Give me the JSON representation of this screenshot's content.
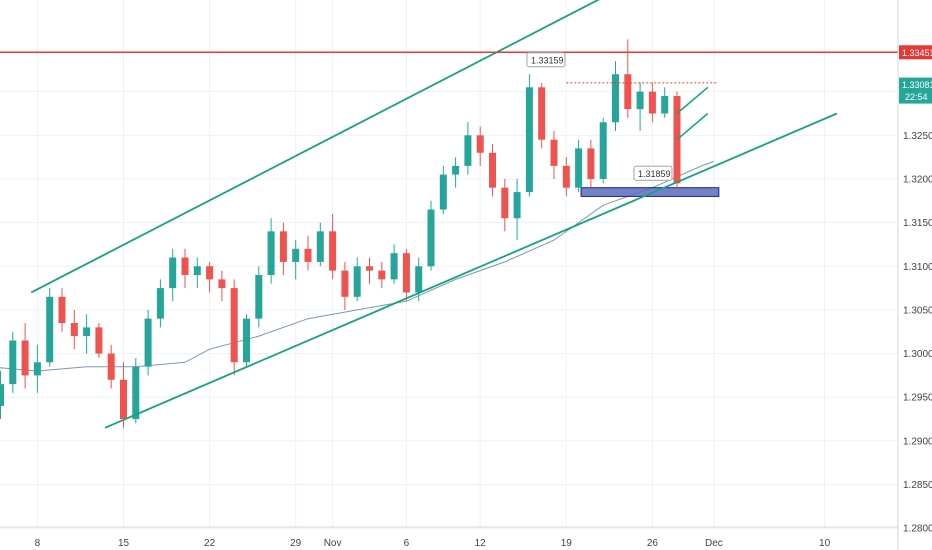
{
  "chart_data": {
    "type": "candlestick",
    "ylim": [
      1.2775,
      1.3405
    ],
    "x_ticks": [
      {
        "label": "8",
        "x": 8
      },
      {
        "label": "15",
        "x": 15
      },
      {
        "label": "22",
        "x": 22
      },
      {
        "label": "29",
        "x": 29
      },
      {
        "label": "Nov",
        "x": 32
      },
      {
        "label": "6",
        "x": 38
      },
      {
        "label": "12",
        "x": 44
      },
      {
        "label": "19",
        "x": 51
      },
      {
        "label": "26",
        "x": 58
      },
      {
        "label": "Dec",
        "x": 63
      },
      {
        "label": "10",
        "x": 72
      }
    ],
    "y_ticks": [
      "1.28000",
      "1.28500",
      "1.29000",
      "1.29500",
      "1.30000",
      "1.30500",
      "1.31000",
      "1.31500",
      "1.32000",
      "1.32500",
      "1.33000"
    ],
    "y_tick_values": [
      1.28,
      1.285,
      1.29,
      1.295,
      1.3,
      1.305,
      1.31,
      1.315,
      1.32,
      1.325,
      1.33
    ],
    "colors": {
      "up": "#26a69a",
      "down": "#ef5350",
      "ma": "#7b97b8",
      "channel": "#14a37f",
      "resistance": "#e53935",
      "zone": "#3f51b5",
      "grid": "#eef1f4"
    },
    "resistance_level": {
      "value": 1.33451,
      "label": "1.33451"
    },
    "price_tag": {
      "value": 1.33081,
      "label": "1.33081",
      "countdown": "22:54"
    },
    "annotations": [
      {
        "label": "1.33159",
        "x": 47.8,
        "y": 1.33159
      },
      {
        "label": "1.31859",
        "x": 56.5,
        "y": 1.31859
      }
    ],
    "channel": {
      "upper": [
        [
          7.5,
          1.307
        ],
        [
          62.5,
          1.347
        ]
      ],
      "lower": [
        [
          13.5,
          1.2915
        ],
        [
          73,
          1.3275
        ]
      ]
    },
    "triangle_upper": [
      [
        60,
        1.3275
      ],
      [
        62.5,
        1.3305
      ]
    ],
    "triangle_lower": [
      [
        60,
        1.3245
      ],
      [
        62.5,
        1.3275
      ]
    ],
    "dotted_level": {
      "value": 1.331,
      "from": 51,
      "to": 63.2
    },
    "support_zone": {
      "from": 52.2,
      "to": 63.4,
      "low": 1.318,
      "high": 1.319
    },
    "moving_average": [
      [
        0,
        1.3
      ],
      [
        4,
        1.2985
      ],
      [
        8,
        1.298
      ],
      [
        12,
        1.2985
      ],
      [
        16,
        1.2985
      ],
      [
        20,
        1.299
      ],
      [
        22,
        1.3005
      ],
      [
        26,
        1.302
      ],
      [
        30,
        1.304
      ],
      [
        34,
        1.305
      ],
      [
        38,
        1.306
      ],
      [
        42,
        1.3085
      ],
      [
        46,
        1.3105
      ],
      [
        50,
        1.313
      ],
      [
        54,
        1.317
      ],
      [
        58,
        1.319
      ],
      [
        62,
        1.3215
      ],
      [
        63,
        1.322
      ]
    ],
    "candles": [
      [
        1,
        1.282,
        1.284,
        1.281,
        1.2836
      ],
      [
        2,
        1.2836,
        1.287,
        1.283,
        1.2865
      ],
      [
        3,
        1.2865,
        1.292,
        1.286,
        1.2915
      ],
      [
        4,
        1.2915,
        1.2955,
        1.2895,
        1.294
      ],
      [
        5,
        1.294,
        1.298,
        1.2925,
        1.2965
      ],
      [
        6,
        1.2965,
        1.3025,
        1.2955,
        1.3015
      ],
      [
        7,
        1.3015,
        1.3035,
        1.296,
        1.2975
      ],
      [
        8,
        1.2975,
        1.301,
        1.2955,
        1.299
      ],
      [
        9,
        1.299,
        1.3075,
        1.2985,
        1.3065
      ],
      [
        10,
        1.3065,
        1.3075,
        1.3025,
        1.3035
      ],
      [
        11,
        1.3035,
        1.305,
        1.3005,
        1.302
      ],
      [
        12,
        1.302,
        1.3045,
        1.3,
        1.303
      ],
      [
        13,
        1.303,
        1.3035,
        1.2995,
        1.3
      ],
      [
        14,
        1.3,
        1.301,
        1.296,
        1.297
      ],
      [
        15,
        1.297,
        1.299,
        1.2915,
        1.2925
      ],
      [
        16,
        1.2925,
        1.2995,
        1.292,
        1.2985
      ],
      [
        17,
        1.2985,
        1.305,
        1.2975,
        1.304
      ],
      [
        18,
        1.304,
        1.3085,
        1.303,
        1.3075
      ],
      [
        19,
        1.3075,
        1.312,
        1.306,
        1.311
      ],
      [
        20,
        1.311,
        1.312,
        1.3075,
        1.309
      ],
      [
        21,
        1.309,
        1.311,
        1.3075,
        1.31
      ],
      [
        22,
        1.31,
        1.3105,
        1.307,
        1.3085
      ],
      [
        23,
        1.3085,
        1.3095,
        1.306,
        1.3075
      ],
      [
        24,
        1.3075,
        1.3085,
        1.2975,
        1.299
      ],
      [
        25,
        1.299,
        1.3045,
        1.2985,
        1.304
      ],
      [
        26,
        1.304,
        1.31,
        1.303,
        1.309
      ],
      [
        27,
        1.309,
        1.3155,
        1.308,
        1.314
      ],
      [
        28,
        1.314,
        1.315,
        1.309,
        1.3105
      ],
      [
        29,
        1.3105,
        1.313,
        1.3085,
        1.312
      ],
      [
        30,
        1.312,
        1.3135,
        1.3095,
        1.3105
      ],
      [
        31,
        1.3105,
        1.315,
        1.31,
        1.314
      ],
      [
        32,
        1.314,
        1.316,
        1.3085,
        1.3095
      ],
      [
        33,
        1.3095,
        1.3105,
        1.305,
        1.3065
      ],
      [
        34,
        1.3065,
        1.311,
        1.306,
        1.31
      ],
      [
        35,
        1.31,
        1.311,
        1.308,
        1.3095
      ],
      [
        36,
        1.3095,
        1.3105,
        1.3075,
        1.3085
      ],
      [
        37,
        1.3085,
        1.3125,
        1.308,
        1.3115
      ],
      [
        38,
        1.3115,
        1.312,
        1.306,
        1.307
      ],
      [
        39,
        1.307,
        1.311,
        1.306,
        1.31
      ],
      [
        40,
        1.31,
        1.3175,
        1.3095,
        1.3165
      ],
      [
        41,
        1.3165,
        1.3215,
        1.316,
        1.3205
      ],
      [
        42,
        1.3205,
        1.3225,
        1.319,
        1.3215
      ],
      [
        43,
        1.3215,
        1.3265,
        1.3205,
        1.325
      ],
      [
        44,
        1.325,
        1.326,
        1.3215,
        1.323
      ],
      [
        45,
        1.323,
        1.324,
        1.318,
        1.319
      ],
      [
        46,
        1.319,
        1.32,
        1.314,
        1.3155
      ],
      [
        47,
        1.3155,
        1.32,
        1.313,
        1.3185
      ],
      [
        48,
        1.3185,
        1.332,
        1.318,
        1.3305
      ],
      [
        49,
        1.3305,
        1.331,
        1.3235,
        1.3245
      ],
      [
        50,
        1.3245,
        1.3255,
        1.32,
        1.3215
      ],
      [
        51,
        1.3215,
        1.3225,
        1.318,
        1.319
      ],
      [
        52,
        1.319,
        1.3245,
        1.3185,
        1.3235
      ],
      [
        53,
        1.3235,
        1.3245,
        1.319,
        1.32
      ],
      [
        54,
        1.32,
        1.327,
        1.3195,
        1.3265
      ],
      [
        55,
        1.3265,
        1.3335,
        1.3255,
        1.332
      ],
      [
        56,
        1.332,
        1.336,
        1.327,
        1.328
      ],
      [
        57,
        1.328,
        1.331,
        1.3255,
        1.33
      ],
      [
        58,
        1.33,
        1.331,
        1.3265,
        1.3275
      ],
      [
        59,
        1.3275,
        1.3305,
        1.327,
        1.3295
      ],
      [
        60,
        1.3295,
        1.33,
        1.319,
        1.3195
      ]
    ]
  }
}
